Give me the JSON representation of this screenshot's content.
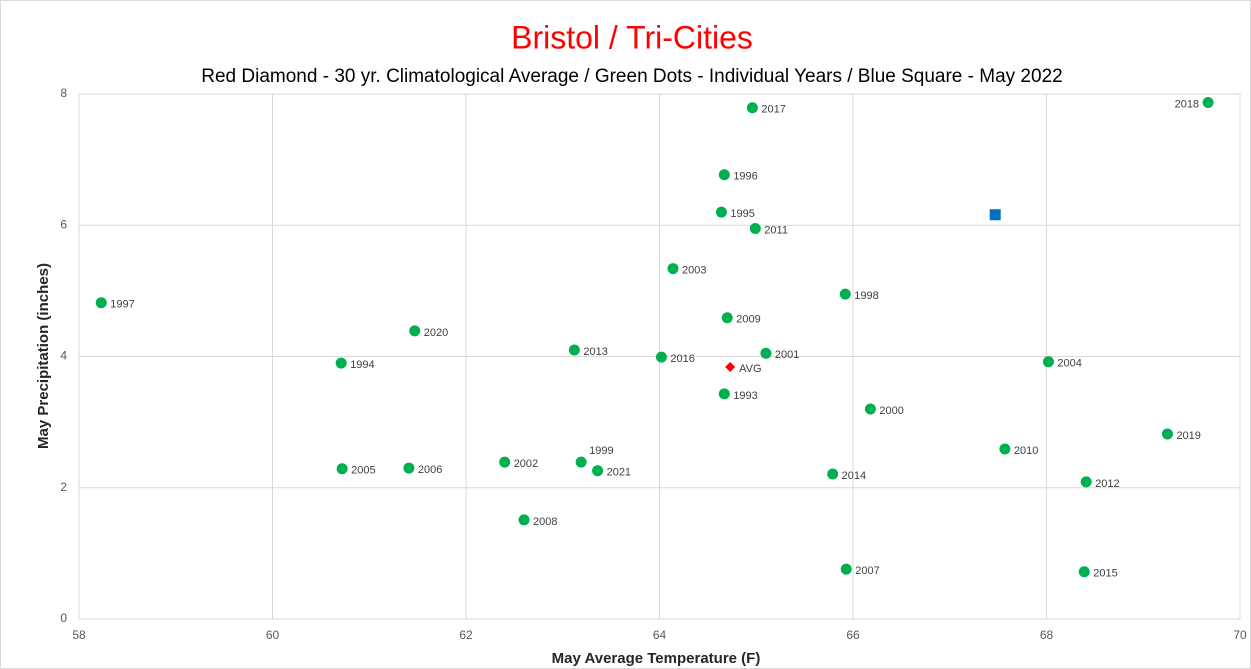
{
  "chart_data": {
    "type": "scatter",
    "title": "Bristol / Tri-Cities",
    "subtitle": "Red Diamond - 30 yr. Climatological Average / Green Dots - Individual Years / Blue Square - May 2022",
    "x_label": "May Average Temperature (F)",
    "y_label": "May Precipitation (inches)",
    "xlim": [
      58,
      70
    ],
    "xticks": [
      58,
      60,
      62,
      64,
      66,
      68,
      70
    ],
    "ylim": [
      0,
      8
    ],
    "yticks": [
      0,
      2,
      4,
      6,
      8
    ],
    "grid": true,
    "series": [
      {
        "color": "#00b050",
        "marker": "circle",
        "labels": [
          "1997",
          "1994",
          "2005",
          "2006",
          "2020",
          "2002",
          "2008",
          "1999",
          "2021",
          "2013",
          "2016",
          "2003",
          "1995",
          "1996",
          "2017",
          "2011",
          "2009",
          "2001",
          "1993",
          "1998",
          "2000",
          "2014",
          "2007",
          "2010",
          "2004",
          "2012",
          "2015",
          "2019",
          "2018"
        ],
        "x": [
          58.23,
          60.71,
          60.72,
          61.41,
          61.47,
          62.4,
          62.6,
          63.19,
          63.36,
          63.12,
          64.02,
          64.14,
          64.64,
          64.67,
          64.96,
          64.99,
          64.7,
          65.1,
          64.67,
          65.92,
          66.18,
          65.79,
          65.93,
          67.57,
          68.02,
          68.41,
          68.39,
          69.25,
          69.67
        ],
        "values": [
          4.82,
          3.9,
          2.29,
          2.3,
          4.39,
          2.39,
          1.51,
          2.39,
          2.26,
          4.1,
          3.99,
          5.34,
          6.2,
          6.77,
          7.79,
          5.95,
          4.59,
          4.05,
          3.43,
          4.95,
          3.2,
          2.21,
          0.76,
          2.59,
          3.92,
          2.09,
          0.72,
          2.82,
          7.87
        ]
      },
      {
        "color": "#ff0000",
        "marker": "diamond",
        "labels": [
          "AVG"
        ],
        "x": [
          64.73
        ],
        "values": [
          3.84
        ]
      },
      {
        "color": "#0070c0",
        "marker": "square",
        "x": [
          67.47
        ],
        "values": [
          6.16
        ]
      }
    ]
  }
}
